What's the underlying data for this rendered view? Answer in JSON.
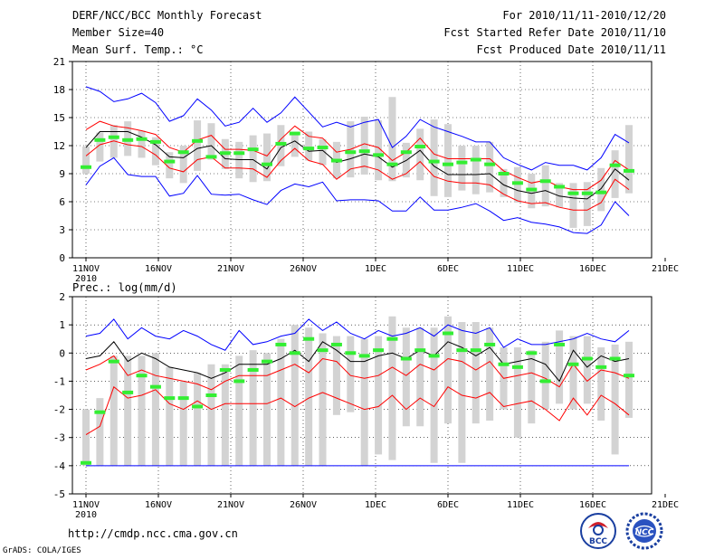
{
  "header": {
    "title": "DERF/NCC/BCC Monthly Forecast",
    "member_size": "Member Size=40",
    "variable": "Mean Surf. Temp.: °C",
    "forecast_period": "For 2010/11/11-2010/12/20",
    "fcst_started": "Fcst Started Refer Date 2010/11/10",
    "fcst_produced": "Fcst Produced Date 2010/11/11"
  },
  "footer": {
    "url": "http://cmdp.ncc.cma.gov.cn",
    "grads_credit": "GrADS: COLA/IGES",
    "logo_bcc": "BCC",
    "logo_ncc": "NCC"
  },
  "colors": {
    "max_min": "#0000ff",
    "mean": "#000000",
    "spread": "#ff0000",
    "box": "#d3d3d3",
    "median": "#33ee33",
    "grid": "#000000"
  },
  "chart_data": [
    {
      "type": "box-ensemble",
      "title": "Mean Surf. Temp.: °C",
      "xlabel": "",
      "ylabel": "",
      "ylim": [
        0,
        21
      ],
      "yticks": [
        0,
        3,
        6,
        9,
        12,
        15,
        18,
        21
      ],
      "xlim": [
        0,
        40
      ],
      "xticks": [
        {
          "day": 0,
          "label": "11NOV",
          "sublabel": "2010"
        },
        {
          "day": 5,
          "label": "16NOV"
        },
        {
          "day": 10,
          "label": "21NOV"
        },
        {
          "day": 15,
          "label": "26NOV"
        },
        {
          "day": 20,
          "label": "1DEC"
        },
        {
          "day": 25,
          "label": "6DEC"
        },
        {
          "day": 30,
          "label": "11DEC"
        },
        {
          "day": 35,
          "label": "16DEC"
        },
        {
          "day": 40,
          "label": "21DEC"
        }
      ],
      "grid": true,
      "days": [
        0,
        1,
        2,
        3,
        4,
        5,
        6,
        7,
        8,
        9,
        10,
        11,
        12,
        13,
        14,
        15,
        16,
        17,
        18,
        19,
        20,
        21,
        22,
        23,
        24,
        25,
        26,
        27,
        28,
        29,
        30,
        31,
        32,
        33,
        34,
        35,
        36,
        37,
        38,
        39
      ],
      "series": [
        {
          "name": "max",
          "color": "#0000ff",
          "values": [
            18.3,
            17.8,
            16.7,
            17.0,
            17.6,
            16.6,
            14.6,
            15.2,
            17.0,
            15.8,
            14.1,
            14.5,
            16.0,
            14.5,
            15.5,
            17.2,
            15.6,
            14.0,
            14.5,
            14.0,
            14.5,
            14.8,
            11.8,
            13.0,
            14.8,
            14.0,
            13.5,
            13.0,
            12.4,
            12.4,
            10.7,
            10.0,
            9.4,
            10.2,
            9.9,
            9.9,
            9.4,
            10.7,
            13.2,
            12.3
          ]
        },
        {
          "name": "mean+sd",
          "color": "#ff0000",
          "values": [
            13.7,
            14.6,
            14.1,
            13.9,
            13.6,
            13.2,
            11.8,
            11.3,
            12.6,
            13.1,
            11.6,
            11.6,
            11.5,
            10.9,
            12.7,
            14.1,
            13.0,
            12.8,
            11.3,
            11.6,
            12.2,
            11.8,
            10.4,
            11.3,
            12.8,
            11.1,
            10.6,
            10.6,
            10.6,
            10.6,
            9.3,
            8.6,
            8.0,
            8.3,
            7.6,
            7.3,
            7.3,
            8.3,
            10.4,
            9.4
          ]
        },
        {
          "name": "mean",
          "color": "#000000",
          "values": [
            11.8,
            13.5,
            13.5,
            13.5,
            12.9,
            12.1,
            10.8,
            10.7,
            11.7,
            12.0,
            10.6,
            10.5,
            10.5,
            9.5,
            11.8,
            12.5,
            11.4,
            11.5,
            10.2,
            10.6,
            11.1,
            10.8,
            9.7,
            10.4,
            11.5,
            9.8,
            8.9,
            8.9,
            8.9,
            9.0,
            7.8,
            7.2,
            6.9,
            7.2,
            6.6,
            6.4,
            6.3,
            7.4,
            9.5,
            8.3
          ]
        },
        {
          "name": "mean-sd",
          "color": "#ff0000",
          "values": [
            10.9,
            12.1,
            12.5,
            12.1,
            11.9,
            11.0,
            9.6,
            9.2,
            10.5,
            10.8,
            9.6,
            9.6,
            9.5,
            8.6,
            10.4,
            11.7,
            10.4,
            10.0,
            8.4,
            9.5,
            9.8,
            9.4,
            8.4,
            9.0,
            10.3,
            8.7,
            8.2,
            8.0,
            8.0,
            7.8,
            6.8,
            6.1,
            5.8,
            5.9,
            5.4,
            5.1,
            5.1,
            5.9,
            8.4,
            7.3
          ]
        },
        {
          "name": "min",
          "color": "#0000ff",
          "values": [
            7.8,
            9.8,
            10.7,
            8.9,
            8.7,
            8.7,
            6.6,
            6.9,
            8.8,
            6.8,
            6.7,
            6.8,
            6.2,
            5.7,
            7.2,
            7.9,
            7.6,
            8.1,
            6.1,
            6.2,
            6.2,
            6.1,
            5.0,
            5.0,
            6.5,
            5.1,
            5.1,
            5.4,
            5.8,
            5.0,
            4.0,
            4.3,
            3.8,
            3.6,
            3.3,
            2.7,
            2.6,
            3.5,
            6.0,
            4.5
          ]
        }
      ],
      "box_low": [
        9.0,
        10.3,
        10.7,
        10.9,
        10.7,
        9.9,
        8.5,
        8.0,
        9.3,
        10.5,
        9.5,
        8.5,
        8.1,
        8.2,
        9.8,
        10.8,
        10.4,
        9.9,
        8.5,
        8.6,
        8.9,
        8.3,
        8.2,
        8.6,
        8.3,
        6.6,
        6.5,
        7.2,
        6.8,
        7.0,
        6.5,
        5.9,
        5.3,
        5.5,
        5.4,
        3.2,
        3.4,
        5.0,
        6.4,
        6.9
      ],
      "box_high": [
        11.9,
        13.4,
        14.2,
        14.6,
        13.6,
        12.9,
        11.3,
        12.0,
        14.7,
        14.4,
        12.7,
        12.4,
        13.1,
        13.3,
        14.2,
        13.4,
        13.5,
        12.7,
        12.4,
        14.6,
        15.1,
        14.7,
        17.2,
        12.3,
        13.8,
        14.8,
        14.3,
        12.0,
        12.0,
        12.4,
        9.5,
        9.7,
        9.0,
        9.9,
        8.0,
        8.0,
        8.1,
        9.6,
        11.5,
        14.2
      ],
      "median": [
        9.7,
        12.6,
        12.9,
        12.6,
        12.7,
        12.4,
        10.3,
        11.3,
        12.5,
        10.8,
        11.2,
        11.2,
        11.6,
        10.0,
        12.2,
        13.3,
        11.7,
        11.8,
        10.4,
        11.3,
        11.4,
        11.0,
        10.0,
        11.3,
        11.9,
        10.3,
        10.0,
        10.2,
        10.5,
        10.0,
        9.0,
        8.0,
        7.3,
        8.2,
        7.6,
        6.9,
        6.9,
        7.0,
        9.9,
        9.3
      ]
    },
    {
      "type": "box-ensemble",
      "title": "Prec.: log(mm/d)",
      "xlabel": "",
      "ylabel": "",
      "ylim": [
        -5,
        2
      ],
      "yticks": [
        -5,
        -4,
        -3,
        -2,
        -1,
        0,
        1,
        2
      ],
      "xlim": [
        0,
        40
      ],
      "xticks": [
        {
          "day": 0,
          "label": "11NOV",
          "sublabel": "2010"
        },
        {
          "day": 5,
          "label": "16NOV"
        },
        {
          "day": 10,
          "label": "21NOV"
        },
        {
          "day": 15,
          "label": "26NOV"
        },
        {
          "day": 20,
          "label": "1DEC"
        },
        {
          "day": 25,
          "label": "6DEC"
        },
        {
          "day": 30,
          "label": "11DEC"
        },
        {
          "day": 35,
          "label": "16DEC"
        },
        {
          "day": 40,
          "label": "21DEC"
        }
      ],
      "grid": true,
      "days": [
        0,
        1,
        2,
        3,
        4,
        5,
        6,
        7,
        8,
        9,
        10,
        11,
        12,
        13,
        14,
        15,
        16,
        17,
        18,
        19,
        20,
        21,
        22,
        23,
        24,
        25,
        26,
        27,
        28,
        29,
        30,
        31,
        32,
        33,
        34,
        35,
        36,
        37,
        38,
        39
      ],
      "series": [
        {
          "name": "max",
          "color": "#0000ff",
          "values": [
            0.6,
            0.7,
            1.2,
            0.5,
            0.9,
            0.6,
            0.5,
            0.8,
            0.6,
            0.3,
            0.1,
            0.8,
            0.3,
            0.4,
            0.6,
            0.7,
            1.2,
            0.8,
            1.1,
            0.7,
            0.5,
            0.8,
            0.6,
            0.7,
            0.9,
            0.6,
            1.0,
            0.8,
            0.7,
            0.9,
            0.2,
            0.5,
            0.3,
            0.3,
            0.4,
            0.5,
            0.7,
            0.5,
            0.4,
            0.8
          ]
        },
        {
          "name": "mean+sd",
          "color": "#000000",
          "values": [
            -0.2,
            -0.1,
            0.4,
            -0.3,
            0.0,
            -0.2,
            -0.5,
            -0.6,
            -0.7,
            -0.9,
            -0.7,
            -0.4,
            -0.4,
            -0.4,
            -0.2,
            0.1,
            -0.3,
            0.4,
            0.1,
            -0.3,
            -0.3,
            -0.1,
            0.0,
            -0.2,
            0.1,
            -0.1,
            0.4,
            0.2,
            -0.1,
            0.2,
            -0.4,
            -0.3,
            -0.2,
            -0.4,
            -1.0,
            0.1,
            -0.5,
            -0.1,
            -0.3,
            -0.2
          ]
        },
        {
          "name": "mean",
          "color": "#ff0000",
          "values": [
            -0.6,
            -0.4,
            -0.1,
            -0.8,
            -0.6,
            -0.8,
            -0.9,
            -1.0,
            -1.1,
            -1.3,
            -1.0,
            -0.8,
            -0.8,
            -0.8,
            -0.6,
            -0.4,
            -0.7,
            -0.2,
            -0.3,
            -0.8,
            -0.9,
            -0.8,
            -0.5,
            -0.8,
            -0.4,
            -0.6,
            -0.2,
            -0.3,
            -0.6,
            -0.3,
            -0.9,
            -0.8,
            -0.7,
            -0.9,
            -1.2,
            -0.4,
            -1.0,
            -0.6,
            -0.7,
            -0.9
          ]
        },
        {
          "name": "mean-sd",
          "color": "#ff0000",
          "values": [
            -2.9,
            -2.6,
            -1.2,
            -1.6,
            -1.5,
            -1.3,
            -1.8,
            -2.0,
            -1.7,
            -2.0,
            -1.8,
            -1.8,
            -1.8,
            -1.8,
            -1.6,
            -1.9,
            -1.6,
            -1.4,
            -1.6,
            -1.8,
            -2.0,
            -1.9,
            -1.5,
            -2.0,
            -1.6,
            -1.9,
            -1.2,
            -1.5,
            -1.6,
            -1.4,
            -1.9,
            -1.8,
            -1.7,
            -2.0,
            -2.4,
            -1.6,
            -2.2,
            -1.5,
            -1.8,
            -2.2
          ]
        },
        {
          "name": "min",
          "color": "#0000ff",
          "values": [
            -4.0,
            -4.0,
            -4.0,
            -4.0,
            -4.0,
            -4.0,
            -4.0,
            -4.0,
            -4.0,
            -4.0,
            -4.0,
            -4.0,
            -4.0,
            -4.0,
            -4.0,
            -4.0,
            -4.0,
            -4.0,
            -4.0,
            -4.0,
            -4.0,
            -4.0,
            -4.0,
            -4.0,
            -4.0,
            -4.0,
            -4.0,
            -4.0,
            -4.0,
            -4.0,
            -4.0,
            -4.0,
            -4.0,
            -4.0,
            -4.0,
            -4.0,
            -4.0,
            -4.0,
            -4.0,
            -4.0
          ]
        }
      ],
      "box_low": [
        -4.0,
        -4.0,
        -4.0,
        -4.0,
        -4.0,
        -4.0,
        -4.0,
        -4.0,
        -4.0,
        -4.0,
        -4.0,
        -4.0,
        -4.0,
        -4.0,
        -4.0,
        -4.0,
        -4.0,
        -4.0,
        -2.2,
        -2.1,
        -4.0,
        -3.6,
        -3.8,
        -2.6,
        -2.6,
        -3.9,
        -2.5,
        -3.9,
        -2.5,
        -2.4,
        -2.0,
        -3.0,
        -2.5,
        -2.0,
        -1.8,
        -2.0,
        -1.8,
        -2.4,
        -3.6,
        -2.3
      ],
      "box_high": [
        -2.0,
        -1.6,
        -0.1,
        -0.1,
        -0.1,
        0.0,
        -0.5,
        -1.0,
        -0.7,
        -0.4,
        -0.4,
        -0.1,
        0.1,
        0.0,
        0.5,
        1.0,
        0.9,
        0.7,
        0.6,
        0.6,
        0.5,
        0.6,
        1.3,
        0.9,
        0.9,
        0.9,
        1.3,
        1.1,
        1.1,
        0.9,
        0.2,
        0.2,
        0.1,
        0.4,
        0.8,
        0.6,
        0.6,
        0.2,
        0.3,
        0.4
      ],
      "median": [
        -3.9,
        -2.1,
        -0.3,
        -1.4,
        -0.8,
        -1.2,
        -1.6,
        -1.6,
        -1.9,
        -1.5,
        -0.6,
        -1.0,
        -0.6,
        -0.3,
        0.3,
        0.0,
        0.5,
        0.1,
        0.3,
        0.0,
        -0.1,
        0.1,
        0.5,
        -0.2,
        0.1,
        -0.1,
        0.7,
        0.1,
        0.1,
        0.3,
        -0.4,
        -0.5,
        0.0,
        -1.0,
        0.3,
        -0.4,
        -0.2,
        -0.5,
        -0.2,
        -0.8
      ]
    }
  ]
}
